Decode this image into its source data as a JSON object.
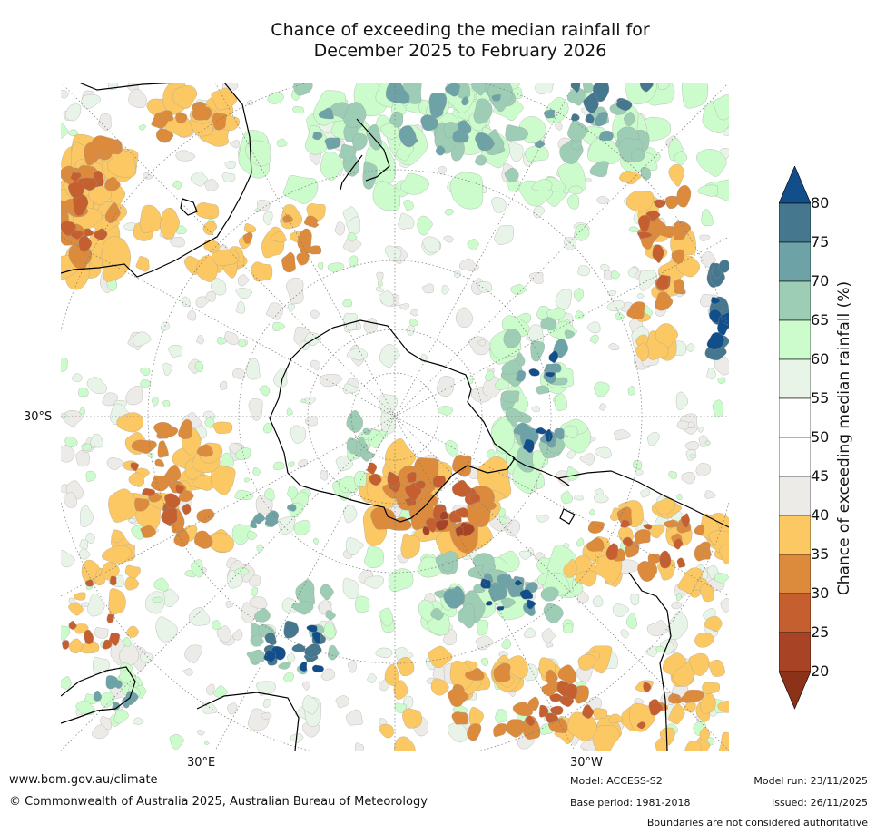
{
  "title": {
    "line1": "Chance of exceeding the median rainfall for",
    "line2": "December 2025 to February 2026"
  },
  "axis": {
    "lat_label": "30°S",
    "lon_left": "30°E",
    "lon_right": "30°W"
  },
  "colorbar": {
    "label": "Chance of exceeding median rainfall (%)",
    "ticks": [
      "80",
      "75",
      "70",
      "65",
      "60",
      "55",
      "50",
      "45",
      "40",
      "35",
      "30",
      "25",
      "20"
    ],
    "colors": [
      "#114e8a",
      "#45788f",
      "#6da3a7",
      "#9dcdb5",
      "#ccfccc",
      "#e8f4e8",
      "#ffffff",
      "#ffffff",
      "#edebe7",
      "#fbc863",
      "#dc8a3c",
      "#c55f30",
      "#a84325",
      "#8b3219"
    ]
  },
  "footer": {
    "url": "www.bom.gov.au/climate",
    "copyright": "© Commonwealth of Australia 2025, Australian Bureau of Meteorology",
    "model": "Model: ACCESS-S2",
    "base_period": "Base period: 1981-2018",
    "model_run": "Model run: 23/11/2025",
    "issued": "Issued: 26/11/2025",
    "disclaimer": "Boundaries are not considered authoritative"
  }
}
